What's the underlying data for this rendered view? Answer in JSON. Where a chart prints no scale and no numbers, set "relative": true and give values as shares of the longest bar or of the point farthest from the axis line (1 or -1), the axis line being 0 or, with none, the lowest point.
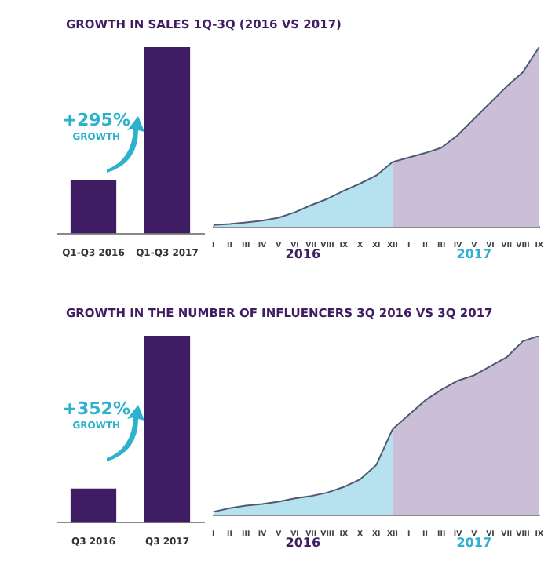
{
  "chart_data": [
    {
      "type": "bar",
      "title": "GROWTH IN SALES 1Q-3Q (2016 VS 2017)",
      "relative": true,
      "categories": [
        "Q1-Q3 2016",
        "Q1-Q3 2017"
      ],
      "values": [
        0.285,
        1.0
      ],
      "color": "#3f1d63",
      "annotations": [
        "+295%",
        "GROWTH"
      ]
    },
    {
      "type": "area",
      "relative": true,
      "categories": [
        "I",
        "II",
        "III",
        "IV",
        "V",
        "VI",
        "VII",
        "VIII",
        "IX",
        "X",
        "XI",
        "XII",
        "I",
        "II",
        "III",
        "IV",
        "V",
        "VI",
        "VII",
        "VIII",
        "IX"
      ],
      "series": [
        {
          "color": "#b5e2ee",
          "values": [
            0.01,
            0.015,
            0.024,
            0.034,
            0.05,
            0.08,
            0.12,
            0.155,
            0.2,
            0.24,
            0.285,
            0.36,
            null,
            null,
            null,
            null,
            null,
            null,
            null,
            null,
            null
          ]
        },
        {
          "color": "#cbbfd8",
          "values": [
            null,
            null,
            null,
            null,
            null,
            null,
            null,
            null,
            null,
            null,
            null,
            0.36,
            0.385,
            0.41,
            0.44,
            0.51,
            0.6,
            0.69,
            0.78,
            0.86,
            1.0
          ]
        }
      ],
      "annotations": [
        "2016",
        "2017"
      ]
    },
    {
      "type": "bar",
      "title": "GROWTH IN THE NUMBER OF INFLUENCERS 3Q 2016 VS 3Q 2017",
      "relative": true,
      "categories": [
        "Q3 2016",
        "Q3 2017"
      ],
      "values": [
        0.18,
        1.0
      ],
      "color": "#3f1d63",
      "annotations": [
        "+352%",
        "GROWTH"
      ]
    },
    {
      "type": "area",
      "relative": true,
      "categories": [
        "I",
        "II",
        "III",
        "IV",
        "V",
        "VI",
        "VII",
        "VIII",
        "IX",
        "X",
        "XI",
        "XII",
        "I",
        "II",
        "III",
        "IV",
        "V",
        "VI",
        "VII",
        "VIII",
        "IX"
      ],
      "series": [
        {
          "color": "#b5e2ee",
          "values": [
            0.02,
            0.04,
            0.054,
            0.063,
            0.076,
            0.095,
            0.108,
            0.127,
            0.158,
            0.2,
            0.28,
            0.48,
            null,
            null,
            null,
            null,
            null,
            null,
            null,
            null,
            null
          ]
        },
        {
          "color": "#cbbfd8",
          "values": [
            null,
            null,
            null,
            null,
            null,
            null,
            null,
            null,
            null,
            null,
            null,
            0.48,
            0.56,
            0.64,
            0.7,
            0.75,
            0.78,
            0.83,
            0.88,
            0.97,
            1.0
          ]
        }
      ],
      "annotations": [
        "2016",
        "2017"
      ]
    }
  ]
}
